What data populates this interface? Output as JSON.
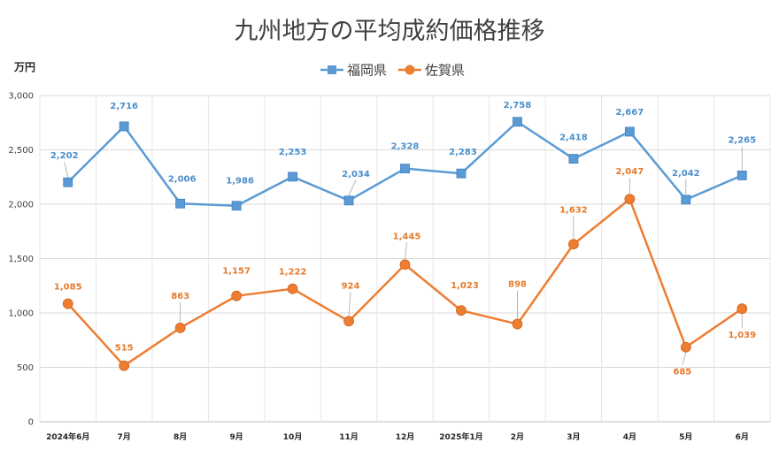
{
  "chart_data": {
    "type": "line",
    "title": "九州地方の平均成約価格推移",
    "ylabel": "万円",
    "ylim": [
      0,
      3000
    ],
    "yticks": [
      0,
      500,
      1000,
      1500,
      2000,
      2500,
      3000
    ],
    "ytick_labels": [
      "0",
      "500",
      "1,000",
      "1,500",
      "2,000",
      "2,500",
      "3,000"
    ],
    "grid": true,
    "legend": "top-center",
    "categories": [
      "2024年6月",
      "7月",
      "8月",
      "9月",
      "10月",
      "11月",
      "12月",
      "2025年1月",
      "2月",
      "3月",
      "4月",
      "5月",
      "6月"
    ],
    "series": [
      {
        "name": "福岡県",
        "color": "#5b9bd5",
        "marker": "square",
        "values": [
          2202,
          2716,
          2006,
          1986,
          2253,
          2034,
          2328,
          2283,
          2758,
          2418,
          2667,
          2042,
          2265
        ],
        "labels": [
          "2,202",
          "2,716",
          "2,006",
          "1,986",
          "2,253",
          "2,034",
          "2,328",
          "2,283",
          "2,758",
          "2,418",
          "2,667",
          "2,042",
          "2,265"
        ]
      },
      {
        "name": "佐賀県",
        "color": "#ed7d31",
        "marker": "circle",
        "values": [
          1085,
          515,
          863,
          1157,
          1222,
          924,
          1445,
          1023,
          898,
          1632,
          2047,
          685,
          1039
        ],
        "labels": [
          "1,085",
          "515",
          "863",
          "1,157",
          "1,222",
          "924",
          "1,445",
          "1,023",
          "898",
          "1,632",
          "2,047",
          "685",
          "1,039"
        ]
      }
    ]
  }
}
